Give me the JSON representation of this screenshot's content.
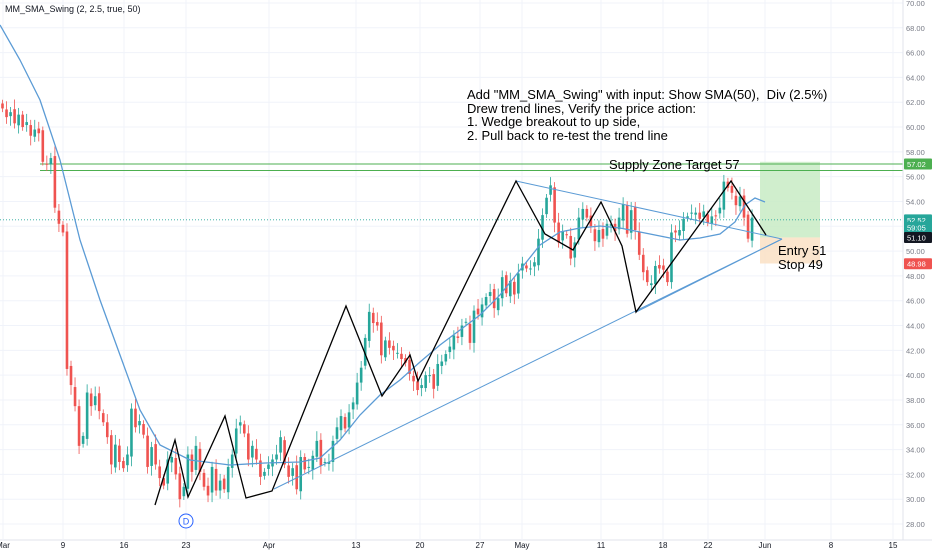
{
  "indicator_label": "MM_SMA_Swing (2, 2.5, true, 50)",
  "annotation": {
    "lines": [
      "Add \"MM_SMA_Swing\" with input: Show SMA(50),  Div (2.5%)",
      "Drew trend lines, Verify the price action:",
      "1. Wedge breakout to up side,",
      "2. Pull back to re-test the trend line"
    ]
  },
  "supply_zone_label": "Supply Zone  Target 57",
  "entry_label": "Entry 51",
  "stop_label": "Stop 49",
  "dividend_marker": "D",
  "price_tags": [
    {
      "label": "57.02",
      "color": "#4caf50"
    },
    {
      "label": "52.52",
      "color": "#26a69a"
    },
    {
      "label": "59:05",
      "color": "#26a69a"
    },
    {
      "label": "51.10",
      "color": "#131722"
    },
    {
      "label": "48.98",
      "color": "#ef5350"
    }
  ],
  "chart_data": {
    "type": "candlestick",
    "y_ticks": [
      "28.00",
      "30.00",
      "32.00",
      "34.00",
      "36.00",
      "38.00",
      "40.00",
      "42.00",
      "44.00",
      "46.00",
      "48.00",
      "50.00",
      "52.00",
      "54.00",
      "56.00",
      "58.00",
      "60.00",
      "62.00",
      "64.00",
      "66.00",
      "68.00",
      "70.00"
    ],
    "ylim": [
      27,
      70.3
    ],
    "x_ticks": [
      "Mar",
      "9",
      "16",
      "23",
      "Apr",
      "13",
      "20",
      "27",
      "May",
      "11",
      "18",
      "22",
      "Jun",
      "8",
      "15"
    ],
    "colors": {
      "up": "#26a69a",
      "down": "#ef5350",
      "sma": "#5b9bd5",
      "trend": "#5b9bd5",
      "swing": "#000000",
      "supply": "#4caf50"
    },
    "closes": [
      61.5,
      60.8,
      61.2,
      60.3,
      61.0,
      60.0,
      60.4,
      59.3,
      59.8,
      59.5,
      57.2,
      57.0,
      57.5,
      53.5,
      52.2,
      51.5,
      40.5,
      39.2,
      37.5,
      34.3,
      35.1,
      38.6,
      37.5,
      38.3,
      37.1,
      36.2,
      35.0,
      32.8,
      34.4,
      33.0,
      32.5,
      33.6,
      37.3,
      35.8,
      36.3,
      35.2,
      32.6,
      34.2,
      32.8,
      31.7,
      31.1,
      33.2,
      33.4,
      32.0,
      30.0,
      31.0,
      33.6,
      32.2,
      34.3,
      32.2,
      31.0,
      30.3,
      32.6,
      30.7,
      31.5,
      30.8,
      32.6,
      33.6,
      35.7,
      36.2,
      35.3,
      33.2,
      34.3,
      33.2,
      31.8,
      32.2,
      32.8,
      33.2,
      33.6,
      35.0,
      32.8,
      31.8,
      32.5,
      30.8,
      33.4,
      32.4,
      32.6,
      33.5,
      34.7,
      32.7,
      33.0,
      33.0,
      34.7,
      35.8,
      36.7,
      35.7,
      37.0,
      37.8,
      39.4,
      40.6,
      43.0,
      45.1,
      44.2,
      44.0,
      41.6,
      42.8,
      42.2,
      42.0,
      41.8,
      41.3,
      41.0,
      40.1,
      39.5,
      38.8,
      39.2,
      40.0,
      40.0,
      38.9,
      40.9,
      41.1,
      41.7,
      42.3,
      43.2,
      43.0,
      44.0,
      44.3,
      42.6,
      45.2,
      44.9,
      45.7,
      46.3,
      46.7,
      45.4,
      46.2,
      47.9,
      46.6,
      47.6,
      46.5,
      48.2,
      49.0,
      48.6,
      48.6,
      49.1,
      51.0,
      52.9,
      54.3,
      55.3,
      52.3,
      50.7,
      51.6,
      51.3,
      49.4,
      50.7,
      52.7,
      53.4,
      52.7,
      52.0,
      50.8,
      51.7,
      51.0,
      52.2,
      52.2,
      51.6,
      52.7,
      53.8,
      51.4,
      53.3,
      51.7,
      49.7,
      48.3,
      47.5,
      47.4,
      48.8,
      48.6,
      48.5,
      47.5,
      51.5,
      51.5,
      51.7,
      52.6,
      52.8,
      53.1,
      53.1,
      52.6,
      53.2,
      52.3,
      52.8,
      52.8,
      53.5,
      55.6,
      55.1,
      54.7,
      53.7,
      54.4,
      52.7,
      51.0,
      52.7
    ]
  }
}
